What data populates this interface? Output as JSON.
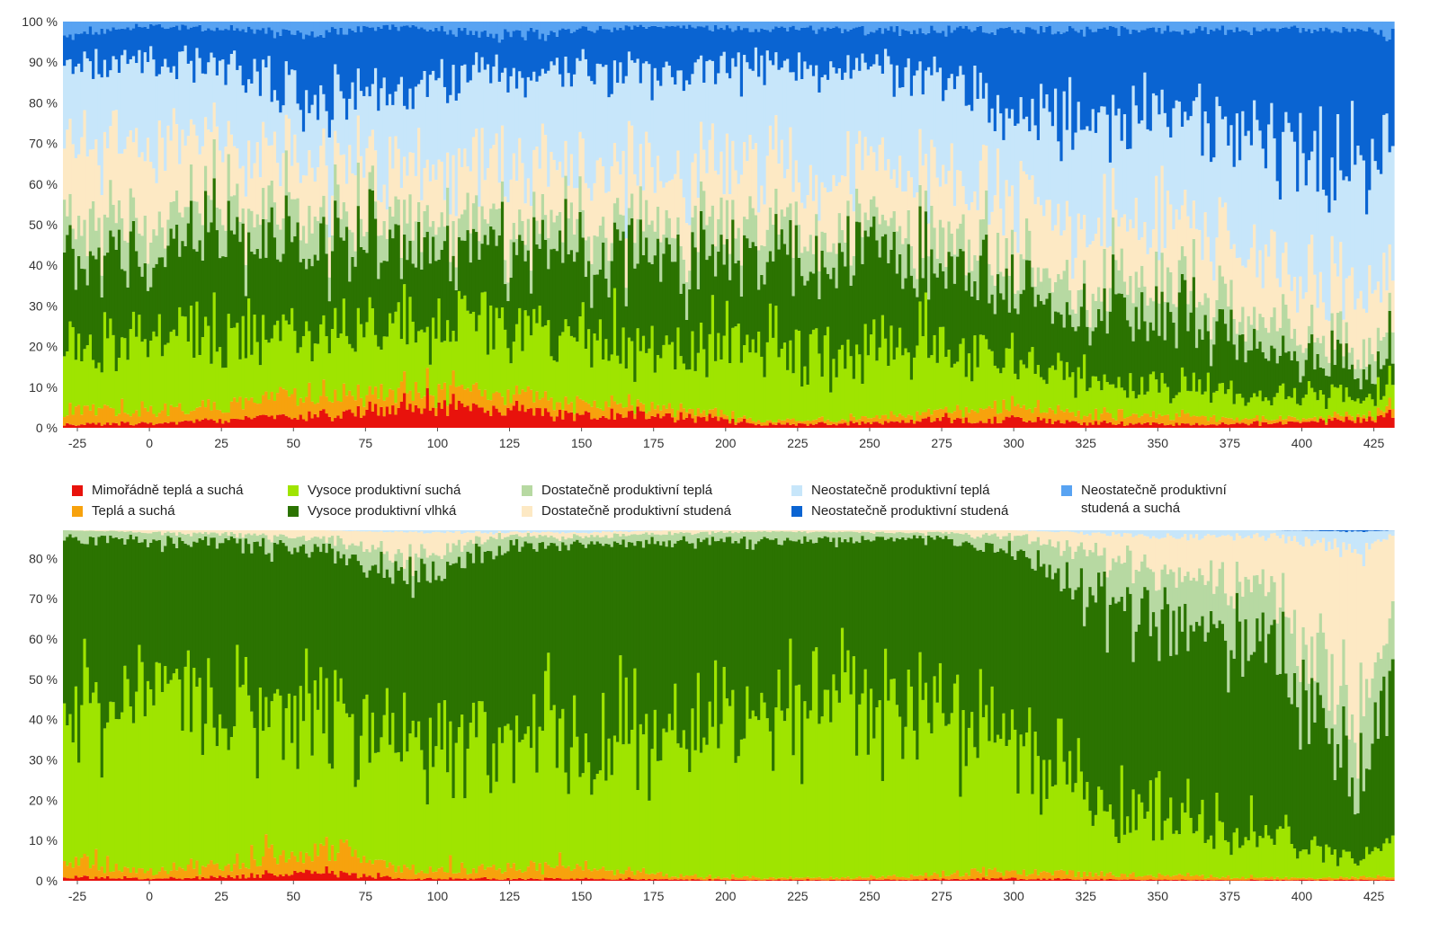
{
  "chart_data": [
    {
      "type": "stacked-bar",
      "panel": "top",
      "title": "",
      "xlabel": "",
      "ylabel": "",
      "x_range": [
        -30,
        432
      ],
      "ylim": [
        0,
        100
      ],
      "y_ticks": [
        0,
        10,
        20,
        30,
        40,
        50,
        60,
        70,
        80,
        90,
        100
      ],
      "y_tick_suffix": " %",
      "x_ticks": [
        -25,
        0,
        25,
        50,
        75,
        100,
        125,
        150,
        175,
        200,
        225,
        250,
        275,
        300,
        325,
        350,
        375,
        400,
        425
      ],
      "x_anchors": [
        -30,
        0,
        30,
        60,
        90,
        120,
        150,
        180,
        210,
        240,
        270,
        300,
        330,
        360,
        390,
        420,
        432
      ],
      "series": [
        {
          "name": "Mimořádně teplá a suchá",
          "color": "#e8120c",
          "values": [
            1,
            1,
            2,
            3,
            6,
            5,
            3,
            3,
            1,
            1,
            2,
            2,
            1,
            1,
            1,
            2,
            3
          ]
        },
        {
          "name": "Teplá a suchá",
          "color": "#f7a20d",
          "values": [
            4,
            3,
            4,
            5,
            4,
            4,
            3,
            2,
            1,
            1,
            2,
            3,
            2,
            2,
            1,
            1,
            2
          ]
        },
        {
          "name": "Vysoce produktivní suchá",
          "color": "#9fe400",
          "values": [
            14,
            20,
            18,
            14,
            15,
            18,
            16,
            16,
            19,
            16,
            16,
            12,
            8,
            7,
            6,
            4,
            7
          ]
        },
        {
          "name": "Vysoce produktivní vlhká",
          "color": "#2b7301",
          "values": [
            22,
            20,
            23,
            21,
            19,
            19,
            22,
            23,
            21,
            23,
            20,
            17,
            19,
            17,
            11,
            6,
            10
          ]
        },
        {
          "name": "Dostatečně produktivní teplá",
          "color": "#b7d9a2",
          "values": [
            9,
            8,
            8,
            8,
            7,
            7,
            7,
            7,
            7,
            7,
            8,
            7,
            8,
            7,
            7,
            5,
            7
          ]
        },
        {
          "name": "Dostatečně produktivní studená",
          "color": "#fde9c4",
          "values": [
            20,
            18,
            14,
            13,
            14,
            13,
            14,
            13,
            14,
            14,
            14,
            15,
            14,
            15,
            15,
            14,
            16
          ]
        },
        {
          "name": "Neostatečně produktivní teplá",
          "color": "#c7e6fa",
          "values": [
            20,
            20,
            19,
            16,
            20,
            24,
            23,
            24,
            25,
            26,
            24,
            22,
            25,
            27,
            27,
            28,
            26
          ]
        },
        {
          "name": "Neostatečně produktivní studená",
          "color": "#0a64d2",
          "values": [
            7,
            9,
            10,
            17,
            14,
            10,
            10,
            11,
            10,
            10,
            12,
            20,
            21,
            20,
            30,
            36,
            23
          ]
        },
        {
          "name": "Neostatečně produktivní\nstudená a suchá",
          "color": "#58a3f2",
          "values": [
            3,
            1,
            2,
            3,
            1,
            4,
            2,
            1,
            2,
            2,
            2,
            2,
            2,
            2,
            2,
            2,
            3
          ]
        }
      ]
    },
    {
      "type": "stacked-bar",
      "panel": "bottom",
      "title": "",
      "xlabel": "",
      "ylabel": "",
      "x_range": [
        -30,
        432
      ],
      "ylim": [
        0,
        87
      ],
      "y_ticks": [
        0,
        10,
        20,
        30,
        40,
        50,
        60,
        70,
        80
      ],
      "y_tick_suffix": " %",
      "x_ticks": [
        -25,
        0,
        25,
        50,
        75,
        100,
        125,
        150,
        175,
        200,
        225,
        250,
        275,
        300,
        325,
        350,
        375,
        400,
        425
      ],
      "x_anchors": [
        -30,
        0,
        30,
        60,
        90,
        120,
        150,
        180,
        210,
        240,
        270,
        300,
        330,
        360,
        390,
        420,
        432
      ],
      "series": [
        {
          "name": "Mimořádně teplá a suchá",
          "color": "#e8120c",
          "values": [
            1,
            0.5,
            1,
            2,
            0.5,
            0.5,
            0.5,
            0.3,
            0.2,
            0.2,
            0.3,
            0.5,
            0.3,
            0.2,
            0.2,
            0.2,
            0.3
          ]
        },
        {
          "name": "Teplá a suchá",
          "color": "#f7a20d",
          "values": [
            4,
            2,
            3,
            6,
            2,
            3,
            3,
            1,
            0.5,
            0.5,
            1,
            2,
            1,
            1,
            0.5,
            0.5,
            1
          ]
        },
        {
          "name": "Vysoce produktivní suchá",
          "color": "#9fe400",
          "values": [
            36,
            42,
            42,
            32,
            28,
            33,
            34,
            38,
            42,
            44,
            42,
            32,
            18,
            14,
            10,
            5,
            10
          ]
        },
        {
          "name": "Vysoce produktivní vlhká",
          "color": "#2b7301",
          "values": [
            44,
            40,
            38,
            42,
            45,
            46,
            46,
            45,
            42,
            40,
            42,
            47,
            52,
            48,
            45,
            20,
            42
          ]
        },
        {
          "name": "Dostatečně produktivní teplá",
          "color": "#b7d9a2",
          "values": [
            2,
            2,
            2,
            3,
            5,
            3,
            2,
            2,
            2,
            2,
            1,
            4,
            10,
            12,
            15,
            14,
            18
          ]
        },
        {
          "name": "Dostatečně produktivní studená",
          "color": "#fde9c4",
          "values": [
            0,
            0.5,
            1,
            2,
            6,
            1,
            1,
            0.7,
            0.3,
            0.3,
            0.7,
            1.5,
            5,
            10,
            15,
            42,
            15
          ]
        },
        {
          "name": "Neostatečně produktivní teplá",
          "color": "#c7e6fa",
          "values": [
            0,
            0,
            0,
            0,
            0.5,
            0.5,
            0.5,
            0,
            0,
            0,
            0,
            0,
            0.7,
            1.8,
            1.3,
            5,
            0.7
          ]
        },
        {
          "name": "Neostatečně produktivní studená",
          "color": "#0a64d2",
          "values": [
            0,
            0,
            0,
            0,
            0,
            0,
            0,
            0,
            0,
            0,
            0,
            0,
            0,
            0,
            0,
            0.3,
            0
          ]
        },
        {
          "name": "Neostatečně produktivní\nstudená a suchá",
          "color": "#58a3f2",
          "values": [
            0,
            0,
            0,
            0,
            0,
            0,
            0,
            0,
            0,
            0,
            0,
            0,
            0,
            0,
            0,
            0,
            0
          ]
        }
      ]
    }
  ]
}
